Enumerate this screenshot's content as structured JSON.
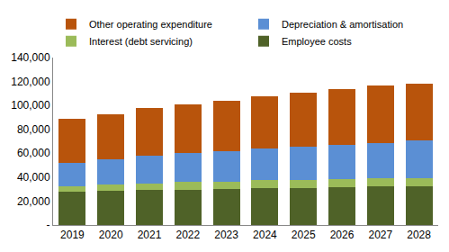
{
  "chart_data": {
    "type": "bar",
    "stacked": true,
    "grid": false,
    "legend": "top",
    "categories": [
      "2019",
      "2020",
      "2021",
      "2022",
      "2023",
      "2024",
      "2025",
      "2026",
      "2027",
      "2028"
    ],
    "series": [
      {
        "name": "Employee costs",
        "color": "#4f6228",
        "values": [
          27500,
          28500,
          29000,
          29500,
          30000,
          30500,
          31000,
          31500,
          32000,
          32500
        ]
      },
      {
        "name": "Interest (debt servicing)",
        "color": "#9bbb59",
        "values": [
          5000,
          5500,
          6000,
          6500,
          6500,
          7000,
          7000,
          7000,
          7000,
          7000
        ]
      },
      {
        "name": "Depreciation & amortisation",
        "color": "#5b8fd4",
        "values": [
          19500,
          21000,
          23000,
          24000,
          25500,
          26500,
          27500,
          28500,
          29500,
          31000
        ]
      },
      {
        "name": "Other operating expenditure",
        "color": "#b8540c",
        "values": [
          37000,
          37500,
          39500,
          40500,
          42000,
          43500,
          45500,
          47000,
          48000,
          48000
        ]
      }
    ],
    "ylim": [
      0,
      140000
    ],
    "yticks": [
      {
        "value": 0,
        "label": "-"
      },
      {
        "value": 20000,
        "label": "20,000"
      },
      {
        "value": 40000,
        "label": "40,000"
      },
      {
        "value": 60000,
        "label": "60,000"
      },
      {
        "value": 80000,
        "label": "80,000"
      },
      {
        "value": 100000,
        "label": "100,000"
      },
      {
        "value": 120000,
        "label": "120,000"
      },
      {
        "value": 140000,
        "label": "140,000"
      }
    ]
  }
}
